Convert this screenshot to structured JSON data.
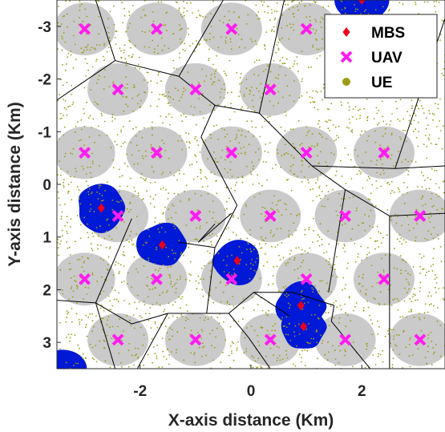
{
  "chart_data": {
    "type": "scatter",
    "xlabel": "X-axis distance (Km)",
    "ylabel": "Y-axis distance (Km)",
    "xlim": [
      -3.5,
      3.5
    ],
    "ylim": [
      -3.5,
      3.5
    ],
    "y_reversed": true,
    "x_ticks": [
      -2,
      0,
      2
    ],
    "y_ticks": [
      -3,
      -2,
      -1,
      0,
      1,
      2,
      3
    ],
    "legend_position": "top-right",
    "legend": [
      "MBS",
      "UAV",
      "UE"
    ],
    "colors": {
      "MBS": "#e8001c",
      "UAV": "#ff1cf0",
      "UE": "#9b9b14",
      "macro_cell": "#0019d6",
      "uav_cell": "#cacaca",
      "boundary": "#000000"
    },
    "series": [
      {
        "name": "MBS",
        "marker": "diamond",
        "points": [
          [
            2.0,
            -3.5
          ],
          [
            -2.7,
            0.45
          ],
          [
            -1.6,
            1.15
          ],
          [
            -0.25,
            1.45
          ],
          [
            0.9,
            2.3
          ],
          [
            0.95,
            2.7
          ]
        ]
      },
      {
        "name": "UAV",
        "marker": "x",
        "points": [
          [
            -3.0,
            -2.95
          ],
          [
            -1.7,
            -2.95
          ],
          [
            -0.35,
            -2.95
          ],
          [
            1.0,
            -2.95
          ],
          [
            -2.4,
            -1.8
          ],
          [
            -1.0,
            -1.8
          ],
          [
            0.35,
            -1.8
          ],
          [
            -3.0,
            -0.6
          ],
          [
            -1.7,
            -0.6
          ],
          [
            -0.35,
            -0.6
          ],
          [
            1.0,
            -0.6
          ],
          [
            2.4,
            -0.6
          ],
          [
            -2.4,
            0.6
          ],
          [
            -1.0,
            0.6
          ],
          [
            0.35,
            0.6
          ],
          [
            1.7,
            0.6
          ],
          [
            3.05,
            0.6
          ],
          [
            -3.0,
            1.8
          ],
          [
            -1.7,
            1.8
          ],
          [
            -0.35,
            1.8
          ],
          [
            1.0,
            1.8
          ],
          [
            2.4,
            1.8
          ],
          [
            -2.4,
            2.95
          ],
          [
            -1.0,
            2.95
          ],
          [
            0.35,
            2.95
          ],
          [
            1.7,
            2.95
          ],
          [
            3.05,
            2.95
          ]
        ]
      },
      {
        "name": "UE",
        "marker": "dot",
        "distribution": "random"
      }
    ],
    "macro_cells": [
      {
        "center": [
          2.0,
          -3.5
        ],
        "radius": 0.45
      },
      {
        "center": [
          -3.4,
          3.5
        ],
        "radius": 0.4
      }
    ],
    "cell_boundaries": [
      [
        [
          -2.8,
          -3.5
        ],
        [
          -2.45,
          -2.35
        ]
      ],
      [
        [
          -2.45,
          -2.35
        ],
        [
          -3.5,
          -1.6
        ]
      ],
      [
        [
          -2.45,
          -2.35
        ],
        [
          -1.3,
          -2.05
        ]
      ],
      [
        [
          -1.3,
          -2.05
        ],
        [
          -0.5,
          -3.5
        ]
      ],
      [
        [
          -1.3,
          -2.05
        ],
        [
          -0.65,
          -1.5
        ]
      ],
      [
        [
          -0.65,
          -1.5
        ],
        [
          0.15,
          -1.35
        ]
      ],
      [
        [
          0.15,
          -1.35
        ],
        [
          0.6,
          -3.5
        ]
      ],
      [
        [
          -0.65,
          -1.5
        ],
        [
          -0.9,
          -0.9
        ]
      ],
      [
        [
          0.15,
          -1.35
        ],
        [
          1.1,
          -0.35
        ]
      ],
      [
        [
          1.1,
          -0.35
        ],
        [
          2.6,
          -0.3
        ]
      ],
      [
        [
          2.6,
          -0.3
        ],
        [
          3.5,
          -0.35
        ]
      ],
      [
        [
          2.6,
          -0.3
        ],
        [
          3.5,
          -3.15
        ]
      ],
      [
        [
          1.1,
          -0.35
        ],
        [
          1.7,
          0.1
        ]
      ],
      [
        [
          1.7,
          0.1
        ],
        [
          2.5,
          0.6
        ]
      ],
      [
        [
          2.5,
          0.6
        ],
        [
          3.5,
          0.55
        ]
      ],
      [
        [
          2.5,
          0.6
        ],
        [
          2.5,
          3.5
        ]
      ],
      [
        [
          1.7,
          0.1
        ],
        [
          1.4,
          2.05
        ]
      ],
      [
        [
          -0.35,
          0.55
        ],
        [
          -0.95,
          1.1
        ]
      ],
      [
        [
          -0.95,
          1.1
        ],
        [
          -0.65,
          0.75
        ]
      ],
      [
        [
          -2.15,
          0.65
        ],
        [
          -2.8,
          2.25
        ]
      ],
      [
        [
          -2.8,
          2.25
        ],
        [
          -3.5,
          2.2
        ]
      ],
      [
        [
          -2.8,
          2.25
        ],
        [
          -2.45,
          3.5
        ]
      ],
      [
        [
          -0.9,
          -0.9
        ],
        [
          -0.25,
          0.4
        ]
      ],
      [
        [
          -0.25,
          0.4
        ],
        [
          -0.65,
          1.2
        ]
      ],
      [
        [
          -0.65,
          1.2
        ],
        [
          -1.3,
          1.1
        ]
      ],
      [
        [
          -0.65,
          1.2
        ],
        [
          -0.8,
          2.45
        ]
      ],
      [
        [
          -0.8,
          2.45
        ],
        [
          -1.5,
          2.45
        ]
      ],
      [
        [
          -1.5,
          2.45
        ],
        [
          -2.15,
          2.65
        ]
      ],
      [
        [
          -2.15,
          2.65
        ],
        [
          -2.8,
          2.25
        ]
      ],
      [
        [
          -1.5,
          2.45
        ],
        [
          -2.05,
          3.5
        ]
      ],
      [
        [
          -0.8,
          2.45
        ],
        [
          -0.4,
          2.45
        ]
      ],
      [
        [
          -0.4,
          2.45
        ],
        [
          -0.05,
          2.9
        ]
      ],
      [
        [
          -0.05,
          2.9
        ],
        [
          0.35,
          3.5
        ]
      ],
      [
        [
          -0.4,
          2.45
        ],
        [
          0.05,
          2.05
        ]
      ],
      [
        [
          0.05,
          2.05
        ],
        [
          0.75,
          2.05
        ]
      ],
      [
        [
          0.75,
          2.05
        ],
        [
          1.5,
          2.3
        ]
      ],
      [
        [
          1.5,
          2.3
        ],
        [
          1.45,
          2.6
        ]
      ],
      [
        [
          1.45,
          2.6
        ],
        [
          2.15,
          3.5
        ]
      ],
      [
        [
          0.7,
          2.5
        ],
        [
          0.05,
          2.05
        ]
      ]
    ]
  }
}
